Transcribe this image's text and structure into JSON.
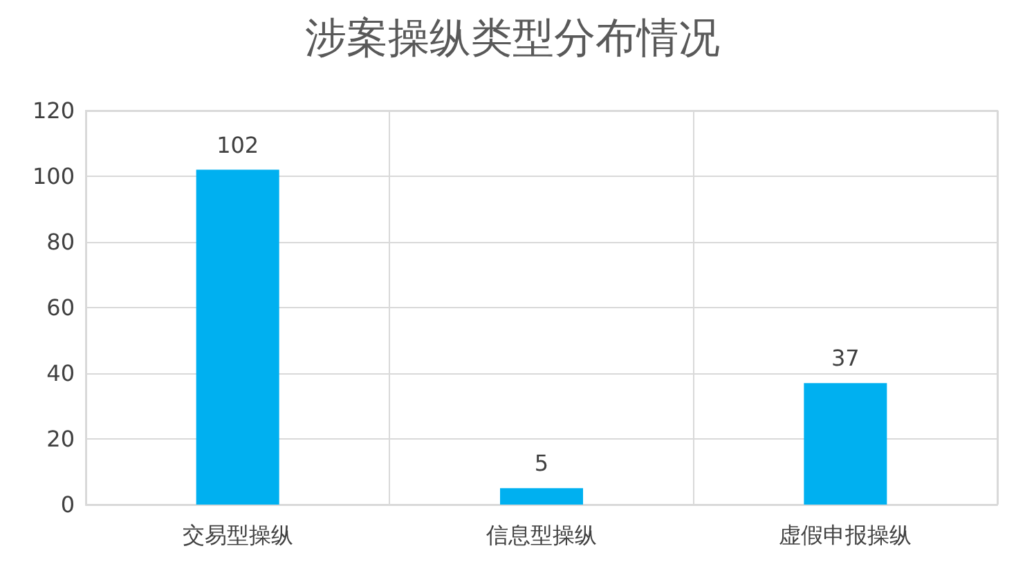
{
  "chart_data": {
    "type": "bar",
    "title": "涉案操纵类型分布情况",
    "categories": [
      "交易型操纵",
      "信息型操纵",
      "虚假申报操纵"
    ],
    "values": [
      102,
      5,
      37
    ],
    "color": "#00b0f0",
    "ylim": [
      0,
      120
    ],
    "yticks": [
      0,
      20,
      40,
      60,
      80,
      100,
      120
    ],
    "grid": true,
    "data_labels": true
  }
}
